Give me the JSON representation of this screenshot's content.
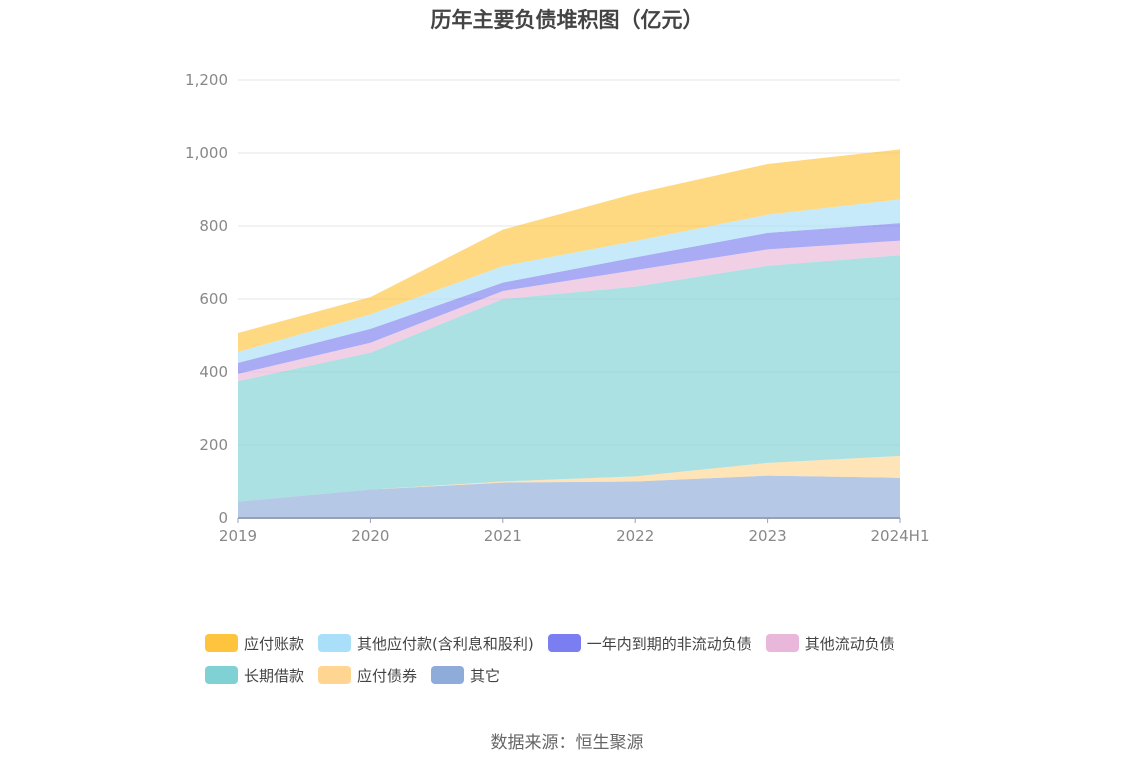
{
  "chart_data": {
    "type": "area",
    "stacked": true,
    "title": "历年主要负债堆积图（亿元）",
    "categories": [
      "2019",
      "2020",
      "2021",
      "2022",
      "2023",
      "2024H1"
    ],
    "ylim": [
      0,
      1200
    ],
    "yticks": [
      "0",
      "200",
      "400",
      "600",
      "800",
      "1,000",
      "1,200"
    ],
    "grid": true,
    "legend_position": "bottom",
    "series": [
      {
        "name": "其它",
        "color": "#8eabd9",
        "values": [
          45,
          78,
          97,
          100,
          116,
          110
        ]
      },
      {
        "name": "应付债券",
        "color": "#ffd591",
        "values": [
          0,
          0,
          3,
          14,
          35,
          60
        ]
      },
      {
        "name": "长期借款",
        "color": "#7fd1d4",
        "values": [
          330,
          375,
          500,
          520,
          540,
          550
        ]
      },
      {
        "name": "其他流动负债",
        "color": "#e9b7d9",
        "values": [
          20,
          27,
          22,
          45,
          45,
          40
        ]
      },
      {
        "name": "一年内到期的非流动负债",
        "color": "#7b7ef0",
        "values": [
          30,
          38,
          23,
          35,
          45,
          48
        ]
      },
      {
        "name": "其他应付款(含利息和股利)",
        "color": "#a9dff8",
        "values": [
          30,
          40,
          45,
          45,
          50,
          65
        ]
      },
      {
        "name": "应付账款",
        "color": "#ffc43d",
        "values": [
          52,
          47,
          100,
          130,
          139,
          137
        ]
      }
    ],
    "legend_order": [
      "应付账款",
      "其他应付款(含利息和股利)",
      "一年内到期的非流动负债",
      "其他流动负债",
      "长期借款",
      "应付债券",
      "其它"
    ]
  },
  "source_text": "数据来源：恒生聚源"
}
